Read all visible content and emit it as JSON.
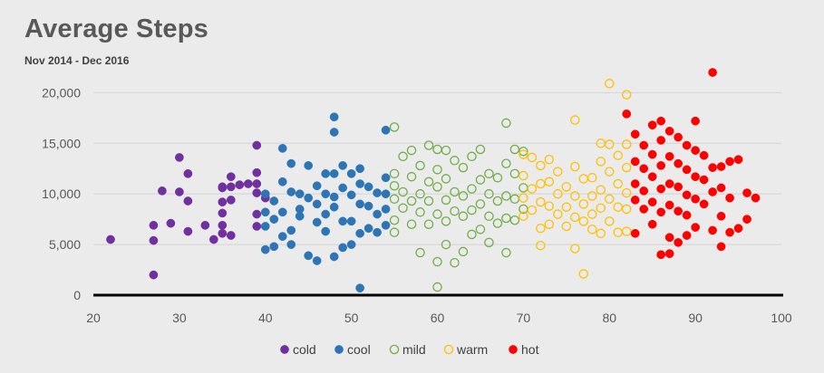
{
  "chart_data": {
    "type": "scatter",
    "title": "Average Steps",
    "subtitle": "Nov 2014 - Dec 2016",
    "xlabel": "",
    "ylabel": "",
    "xlim": [
      20,
      100
    ],
    "ylim": [
      0,
      22000
    ],
    "x_ticks": [
      "20",
      "30",
      "40",
      "50",
      "60",
      "70",
      "80",
      "90",
      "100"
    ],
    "y_ticks": [
      "0",
      "5,000",
      "10,000",
      "15,000",
      "20,000"
    ],
    "grid": "horizontal",
    "legend_position": "bottom",
    "series": [
      {
        "name": "cold",
        "color": "#7030a0",
        "fill": true,
        "points": [
          [
            22,
            5500
          ],
          [
            27,
            2000
          ],
          [
            27,
            5400
          ],
          [
            27,
            6900
          ],
          [
            28,
            10300
          ],
          [
            29,
            7100
          ],
          [
            30,
            10200
          ],
          [
            30,
            13600
          ],
          [
            31,
            12000
          ],
          [
            31,
            9300
          ],
          [
            31,
            6300
          ],
          [
            33,
            6900
          ],
          [
            34,
            5500
          ],
          [
            35,
            6100
          ],
          [
            35,
            6900
          ],
          [
            35,
            8100
          ],
          [
            35,
            9200
          ],
          [
            35,
            10600
          ],
          [
            36,
            10700
          ],
          [
            36,
            11700
          ],
          [
            36,
            9400
          ],
          [
            36,
            5900
          ],
          [
            37,
            10900
          ],
          [
            38,
            11000
          ],
          [
            39,
            14800
          ],
          [
            39,
            12100
          ],
          [
            39,
            11000
          ],
          [
            39,
            10100
          ],
          [
            39,
            8000
          ],
          [
            39,
            6800
          ],
          [
            40,
            9600
          ],
          [
            35,
            10700
          ]
        ]
      },
      {
        "name": "cool",
        "color": "#2e75b6",
        "fill": true,
        "points": [
          [
            40,
            4500
          ],
          [
            40,
            6800
          ],
          [
            40,
            8200
          ],
          [
            40,
            10000
          ],
          [
            41,
            9300
          ],
          [
            41,
            7500
          ],
          [
            41,
            4800
          ],
          [
            42,
            14500
          ],
          [
            42,
            11200
          ],
          [
            42,
            8200
          ],
          [
            42,
            5800
          ],
          [
            43,
            13000
          ],
          [
            43,
            10200
          ],
          [
            43,
            6400
          ],
          [
            43,
            5000
          ],
          [
            44,
            10000
          ],
          [
            44,
            8500
          ],
          [
            44,
            7800
          ],
          [
            45,
            12800
          ],
          [
            45,
            9600
          ],
          [
            45,
            3900
          ],
          [
            46,
            10800
          ],
          [
            46,
            9000
          ],
          [
            46,
            7200
          ],
          [
            46,
            3400
          ],
          [
            47,
            12000
          ],
          [
            47,
            10000
          ],
          [
            47,
            8000
          ],
          [
            47,
            6300
          ],
          [
            48,
            17600
          ],
          [
            48,
            16100
          ],
          [
            48,
            12000
          ],
          [
            48,
            9700
          ],
          [
            48,
            8700
          ],
          [
            48,
            3800
          ],
          [
            49,
            12800
          ],
          [
            49,
            10600
          ],
          [
            49,
            7300
          ],
          [
            49,
            4700
          ],
          [
            50,
            12000
          ],
          [
            50,
            9900
          ],
          [
            50,
            7300
          ],
          [
            50,
            5000
          ],
          [
            51,
            12500
          ],
          [
            51,
            11000
          ],
          [
            51,
            9000
          ],
          [
            51,
            6100
          ],
          [
            51,
            700
          ],
          [
            52,
            10700
          ],
          [
            52,
            8800
          ],
          [
            52,
            6600
          ],
          [
            53,
            10100
          ],
          [
            53,
            8000
          ],
          [
            53,
            6200
          ],
          [
            54,
            16300
          ],
          [
            54,
            11600
          ],
          [
            54,
            10000
          ],
          [
            54,
            8500
          ],
          [
            54,
            6900
          ]
        ]
      },
      {
        "name": "mild",
        "color": "#70ad47",
        "fill": false,
        "points": [
          [
            55,
            16600
          ],
          [
            55,
            12000
          ],
          [
            55,
            10800
          ],
          [
            55,
            9500
          ],
          [
            55,
            7400
          ],
          [
            55,
            6200
          ],
          [
            56,
            13700
          ],
          [
            56,
            10200
          ],
          [
            56,
            8600
          ],
          [
            57,
            14300
          ],
          [
            57,
            11700
          ],
          [
            57,
            9300
          ],
          [
            57,
            7000
          ],
          [
            58,
            12800
          ],
          [
            58,
            10000
          ],
          [
            58,
            8200
          ],
          [
            58,
            4200
          ],
          [
            59,
            14800
          ],
          [
            59,
            11200
          ],
          [
            59,
            9300
          ],
          [
            59,
            7000
          ],
          [
            60,
            14400
          ],
          [
            60,
            12400
          ],
          [
            60,
            10700
          ],
          [
            60,
            8000
          ],
          [
            60,
            3300
          ],
          [
            60,
            800
          ],
          [
            61,
            14300
          ],
          [
            61,
            11500
          ],
          [
            61,
            9400
          ],
          [
            61,
            7300
          ],
          [
            61,
            5000
          ],
          [
            62,
            13300
          ],
          [
            62,
            10200
          ],
          [
            62,
            8300
          ],
          [
            62,
            3200
          ],
          [
            63,
            12600
          ],
          [
            63,
            9800
          ],
          [
            63,
            7800
          ],
          [
            63,
            4300
          ],
          [
            64,
            13700
          ],
          [
            64,
            10500
          ],
          [
            64,
            8400
          ],
          [
            64,
            6000
          ],
          [
            65,
            14400
          ],
          [
            65,
            11400
          ],
          [
            65,
            9000
          ],
          [
            65,
            6500
          ],
          [
            66,
            12000
          ],
          [
            66,
            10000
          ],
          [
            66,
            7800
          ],
          [
            66,
            5200
          ],
          [
            67,
            11600
          ],
          [
            67,
            9300
          ],
          [
            67,
            7100
          ],
          [
            68,
            17000
          ],
          [
            68,
            13000
          ],
          [
            68,
            9800
          ],
          [
            68,
            7600
          ],
          [
            68,
            4200
          ],
          [
            69,
            14400
          ],
          [
            69,
            12000
          ],
          [
            69,
            9500
          ],
          [
            69,
            7400
          ],
          [
            70,
            14200
          ],
          [
            70,
            10600
          ],
          [
            70,
            8500
          ]
        ]
      },
      {
        "name": "warm",
        "color": "#ffc000",
        "fill": false,
        "points": [
          [
            70,
            13900
          ],
          [
            70,
            11800
          ],
          [
            70,
            9600
          ],
          [
            70,
            7800
          ],
          [
            71,
            13600
          ],
          [
            71,
            10500
          ],
          [
            71,
            8400
          ],
          [
            72,
            12800
          ],
          [
            72,
            11000
          ],
          [
            72,
            9200
          ],
          [
            72,
            6600
          ],
          [
            72,
            4900
          ],
          [
            73,
            13400
          ],
          [
            73,
            11200
          ],
          [
            73,
            8800
          ],
          [
            73,
            7000
          ],
          [
            74,
            12200
          ],
          [
            74,
            10000
          ],
          [
            74,
            8000
          ],
          [
            75,
            10700
          ],
          [
            75,
            8700
          ],
          [
            75,
            6800
          ],
          [
            76,
            17300
          ],
          [
            76,
            12700
          ],
          [
            76,
            9800
          ],
          [
            76,
            7700
          ],
          [
            76,
            4600
          ],
          [
            77,
            11500
          ],
          [
            77,
            9000
          ],
          [
            77,
            7300
          ],
          [
            77,
            2100
          ],
          [
            78,
            11600
          ],
          [
            78,
            9800
          ],
          [
            78,
            8000
          ],
          [
            78,
            6500
          ],
          [
            79,
            15000
          ],
          [
            79,
            13200
          ],
          [
            79,
            10400
          ],
          [
            79,
            8600
          ],
          [
            79,
            6100
          ],
          [
            80,
            20900
          ],
          [
            80,
            14900
          ],
          [
            80,
            12200
          ],
          [
            80,
            9500
          ],
          [
            80,
            7300
          ],
          [
            81,
            13800
          ],
          [
            81,
            11000
          ],
          [
            81,
            8700
          ],
          [
            81,
            6200
          ],
          [
            82,
            19800
          ],
          [
            82,
            14900
          ],
          [
            82,
            12600
          ],
          [
            82,
            10100
          ],
          [
            82,
            8500
          ],
          [
            82,
            6300
          ]
        ]
      },
      {
        "name": "hot",
        "color": "#ff0000",
        "fill": true,
        "points": [
          [
            82,
            17900
          ],
          [
            83,
            15900
          ],
          [
            83,
            13200
          ],
          [
            83,
            11000
          ],
          [
            83,
            9400
          ],
          [
            83,
            6100
          ],
          [
            84,
            14800
          ],
          [
            84,
            12500
          ],
          [
            84,
            10300
          ],
          [
            84,
            8500
          ],
          [
            85,
            16800
          ],
          [
            85,
            13900
          ],
          [
            85,
            11700
          ],
          [
            85,
            9200
          ],
          [
            85,
            7000
          ],
          [
            86,
            17200
          ],
          [
            86,
            15300
          ],
          [
            86,
            12800
          ],
          [
            86,
            10500
          ],
          [
            86,
            8200
          ],
          [
            86,
            4000
          ],
          [
            87,
            16200
          ],
          [
            87,
            13700
          ],
          [
            87,
            11000
          ],
          [
            87,
            8900
          ],
          [
            87,
            5700
          ],
          [
            87,
            4100
          ],
          [
            88,
            15600
          ],
          [
            88,
            13000
          ],
          [
            88,
            10700
          ],
          [
            88,
            8300
          ],
          [
            88,
            5200
          ],
          [
            89,
            14800
          ],
          [
            89,
            12400
          ],
          [
            89,
            9900
          ],
          [
            89,
            7900
          ],
          [
            89,
            5900
          ],
          [
            90,
            17200
          ],
          [
            90,
            14300
          ],
          [
            90,
            11700
          ],
          [
            90,
            9500
          ],
          [
            90,
            6700
          ],
          [
            91,
            13800
          ],
          [
            91,
            11400
          ],
          [
            91,
            9000
          ],
          [
            92,
            22000
          ],
          [
            92,
            12600
          ],
          [
            92,
            10200
          ],
          [
            92,
            6400
          ],
          [
            93,
            12700
          ],
          [
            93,
            10600
          ],
          [
            93,
            7800
          ],
          [
            93,
            4800
          ],
          [
            94,
            13200
          ],
          [
            94,
            9600
          ],
          [
            94,
            6200
          ],
          [
            95,
            13400
          ],
          [
            95,
            6600
          ],
          [
            96,
            10100
          ],
          [
            96,
            7500
          ],
          [
            97,
            9600
          ]
        ]
      }
    ]
  }
}
